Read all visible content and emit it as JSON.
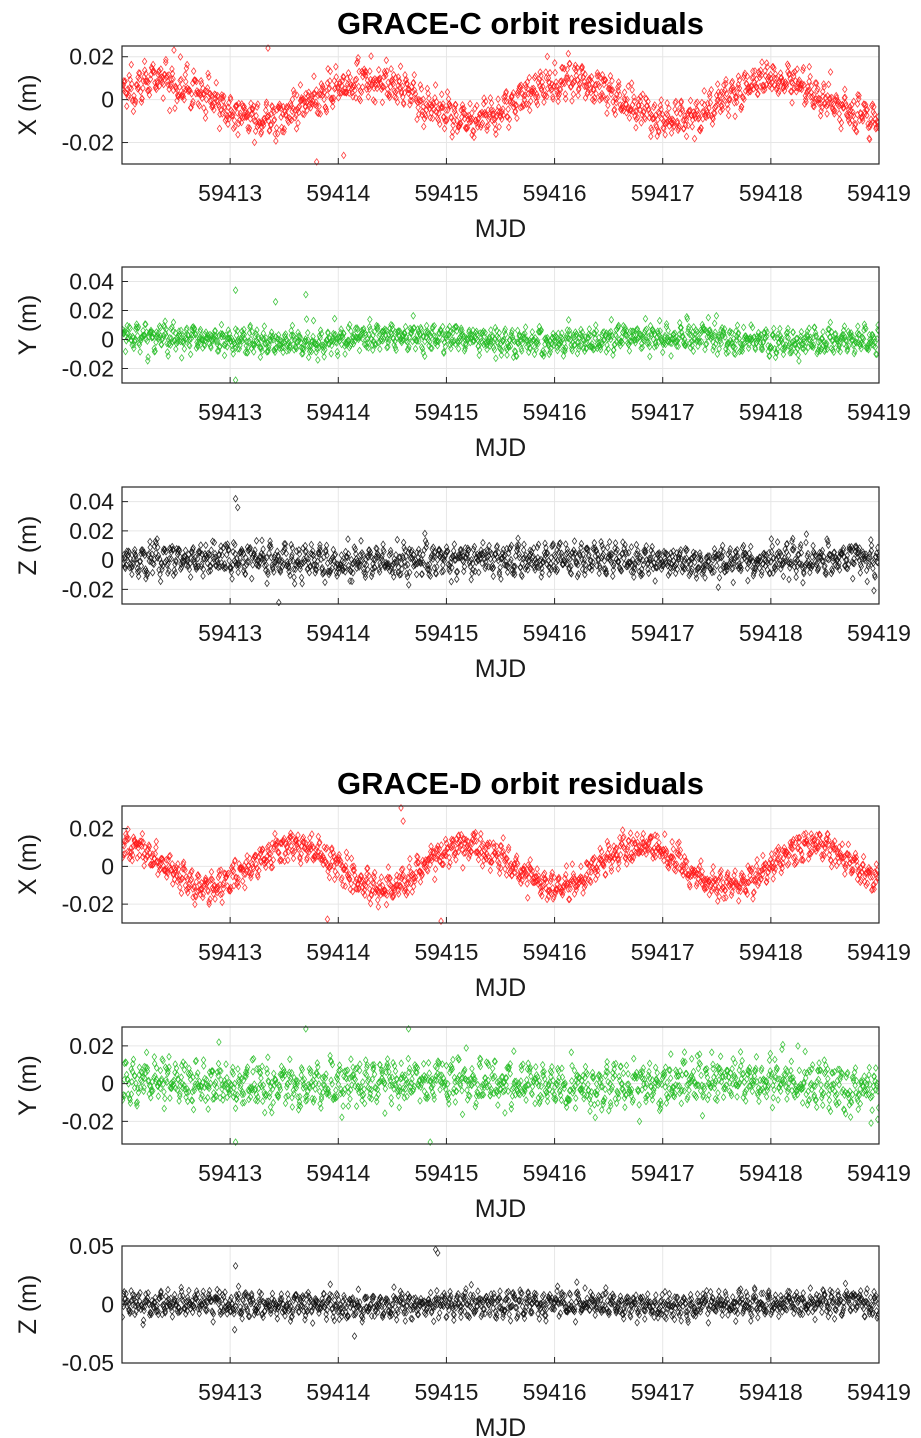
{
  "colors": {
    "x_series": "#ff1a1a",
    "y_series": "#22bb22",
    "z_series": "#111111",
    "grid": "#e6e6e6",
    "axes": "#262626"
  },
  "chart_data": [
    {
      "type": "scatter",
      "group": "GRACE-C",
      "title": "GRACE-C orbit residuals",
      "xlabel": "MJD",
      "ylabel": "X (m)",
      "color": "#ff1a1a",
      "marker": "diamond",
      "xlim": [
        59412,
        59419
      ],
      "ylim": [
        -0.03,
        0.025
      ],
      "xticks": [
        59413,
        59414,
        59415,
        59416,
        59417,
        59418,
        59419
      ],
      "xticklabels": [
        "59413",
        "59414",
        "59415",
        "59416",
        "59417",
        "59418",
        "59419"
      ],
      "yticks": [
        0.02,
        0,
        -0.02
      ],
      "yticklabels": [
        "0.02",
        "0",
        "-0.02"
      ],
      "grid": true,
      "trend_amp": 0.009,
      "trend_period_days": 1.9,
      "trend_phase": 0.4,
      "noise": 0.0065,
      "outliers": [
        [
          59413.35,
          0.024
        ],
        [
          59413.8,
          -0.029
        ],
        [
          59414.05,
          -0.026
        ]
      ]
    },
    {
      "type": "scatter",
      "group": "GRACE-C",
      "title": "",
      "xlabel": "MJD",
      "ylabel": "Y (m)",
      "color": "#22bb22",
      "marker": "diamond",
      "xlim": [
        59412,
        59419
      ],
      "ylim": [
        -0.03,
        0.05
      ],
      "xticks": [
        59413,
        59414,
        59415,
        59416,
        59417,
        59418,
        59419
      ],
      "xticklabels": [
        "59413",
        "59414",
        "59415",
        "59416",
        "59417",
        "59418",
        "59419"
      ],
      "yticks": [
        0.04,
        0.02,
        0,
        -0.02
      ],
      "yticklabels": [
        "0.04",
        "0.02",
        "0",
        "-0.02"
      ],
      "grid": true,
      "trend_amp": 0.002,
      "trend_period_days": 2.4,
      "trend_phase": 1.0,
      "noise": 0.0075,
      "outliers": [
        [
          59413.05,
          0.034
        ],
        [
          59413.42,
          0.026
        ],
        [
          59413.7,
          0.031
        ],
        [
          59413.05,
          -0.028
        ]
      ]
    },
    {
      "type": "scatter",
      "group": "GRACE-C",
      "title": "",
      "xlabel": "MJD",
      "ylabel": "Z (m)",
      "color": "#111111",
      "marker": "diamond",
      "xlim": [
        59412,
        59419
      ],
      "ylim": [
        -0.03,
        0.05
      ],
      "xticks": [
        59413,
        59414,
        59415,
        59416,
        59417,
        59418,
        59419
      ],
      "xticklabels": [
        "59413",
        "59414",
        "59415",
        "59416",
        "59417",
        "59418",
        "59419"
      ],
      "yticks": [
        0.04,
        0.02,
        0,
        -0.02
      ],
      "yticklabels": [
        "0.04",
        "0.02",
        "0",
        "-0.02"
      ],
      "grid": true,
      "trend_amp": 0.001,
      "trend_period_days": 3.0,
      "trend_phase": 0.2,
      "noise": 0.0085,
      "outliers": [
        [
          59413.05,
          0.042
        ],
        [
          59413.07,
          0.036
        ],
        [
          59413.45,
          -0.029
        ]
      ]
    },
    {
      "type": "scatter",
      "group": "GRACE-D",
      "title": "GRACE-D orbit residuals",
      "xlabel": "MJD",
      "ylabel": "X (m)",
      "color": "#ff1a1a",
      "marker": "diamond",
      "xlim": [
        59412,
        59419
      ],
      "ylim": [
        -0.03,
        0.032
      ],
      "xticks": [
        59413,
        59414,
        59415,
        59416,
        59417,
        59418,
        59419
      ],
      "xticklabels": [
        "59413",
        "59414",
        "59415",
        "59416",
        "59417",
        "59418",
        "59419"
      ],
      "yticks": [
        0.02,
        0,
        -0.02
      ],
      "yticklabels": [
        "0.02",
        "0",
        "-0.02"
      ],
      "grid": true,
      "trend_amp": 0.011,
      "trend_period_days": 1.6,
      "trend_phase": 1.6,
      "noise": 0.006,
      "outliers": [
        [
          59414.58,
          0.031
        ],
        [
          59414.6,
          0.024
        ],
        [
          59414.95,
          -0.029
        ],
        [
          59413.9,
          -0.028
        ]
      ]
    },
    {
      "type": "scatter",
      "group": "GRACE-D",
      "title": "",
      "xlabel": "MJD",
      "ylabel": "Y (m)",
      "color": "#22bb22",
      "marker": "diamond",
      "xlim": [
        59412,
        59419
      ],
      "ylim": [
        -0.032,
        0.03
      ],
      "xticks": [
        59413,
        59414,
        59415,
        59416,
        59417,
        59418,
        59419
      ],
      "xticklabels": [
        "59413",
        "59414",
        "59415",
        "59416",
        "59417",
        "59418",
        "59419"
      ],
      "yticks": [
        0.02,
        0,
        -0.02
      ],
      "yticklabels": [
        "0.02",
        "0",
        "-0.02"
      ],
      "grid": true,
      "trend_amp": 0.002,
      "trend_period_days": 2.6,
      "trend_phase": 0.7,
      "noise": 0.0095,
      "outliers": [
        [
          59413.7,
          0.029
        ],
        [
          59414.65,
          0.029
        ],
        [
          59413.05,
          -0.031
        ],
        [
          59414.85,
          -0.031
        ]
      ]
    },
    {
      "type": "scatter",
      "group": "GRACE-D",
      "title": "",
      "xlabel": "MJD",
      "ylabel": "Z (m)",
      "color": "#111111",
      "marker": "diamond",
      "xlim": [
        59412,
        59419
      ],
      "ylim": [
        -0.05,
        0.05
      ],
      "xticks": [
        59413,
        59414,
        59415,
        59416,
        59417,
        59418,
        59419
      ],
      "xticklabels": [
        "59413",
        "59414",
        "59415",
        "59416",
        "59417",
        "59418",
        "59419"
      ],
      "yticks": [
        0.05,
        0,
        -0.05
      ],
      "yticklabels": [
        "0.05",
        "0",
        "-0.05"
      ],
      "grid": true,
      "trend_amp": 0.001,
      "trend_period_days": 3.0,
      "trend_phase": 0.5,
      "noise": 0.0085,
      "outliers": [
        [
          59414.9,
          0.047
        ],
        [
          59414.92,
          0.044
        ],
        [
          59413.05,
          0.033
        ],
        [
          59414.15,
          -0.027
        ]
      ]
    }
  ]
}
